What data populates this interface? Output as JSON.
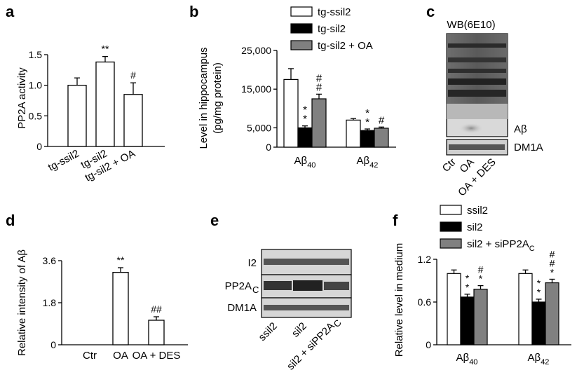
{
  "figure": {
    "panels": [
      "a",
      "b",
      "c",
      "d",
      "e",
      "f"
    ]
  },
  "chart_data": [
    {
      "panel": "a",
      "type": "bar",
      "ylabel": "PP2A activity",
      "ylim": [
        0,
        1.5
      ],
      "yticks": [
        "0",
        "0.5",
        "1.0",
        "1.5"
      ],
      "categories": [
        "tg-ssil2",
        "tg-sil2",
        "tg-sil2 + OA"
      ],
      "values": [
        1.0,
        1.38,
        0.85
      ],
      "errors": [
        0.12,
        0.09,
        0.19
      ],
      "fills": [
        "#ffffff",
        "#ffffff",
        "#ffffff"
      ],
      "annotations": [
        "",
        "**",
        "#"
      ]
    },
    {
      "panel": "b",
      "type": "bar",
      "ylabel_line1": "Level in hippocampus",
      "ylabel_line2": "(pg/mg protein)",
      "ylim": [
        0,
        25000
      ],
      "yticks": [
        "0",
        "5,000",
        "15,000",
        "25,000"
      ],
      "groups": [
        "Aβ40",
        "Aβ42"
      ],
      "group_main": [
        "Aβ",
        "Aβ"
      ],
      "group_sub": [
        "40",
        "42"
      ],
      "series": [
        {
          "name": "tg-ssil2",
          "color": "#ffffff",
          "values": [
            17500,
            7000
          ],
          "errors": [
            2800,
            400
          ]
        },
        {
          "name": "tg-sil2",
          "color": "#000000",
          "values": [
            5000,
            4300
          ],
          "errors": [
            500,
            400
          ]
        },
        {
          "name": "tg-sil2 + OA",
          "color": "#808080",
          "values": [
            12500,
            4900
          ],
          "errors": [
            1200,
            300
          ]
        }
      ],
      "annotations": [
        [
          "",
          "* *",
          "# #"
        ],
        [
          "",
          "* *",
          "#"
        ]
      ]
    },
    {
      "panel": "d",
      "type": "bar",
      "ylabel": "Relative intensity of Aβ",
      "ylim": [
        0,
        3.6
      ],
      "yticks": [
        "0",
        "1.8",
        "3.6"
      ],
      "categories": [
        "Ctr",
        "OA",
        "OA + DES"
      ],
      "values": [
        0,
        3.1,
        1.05
      ],
      "errors": [
        0,
        0.2,
        0.15
      ],
      "annotations": [
        "",
        "**",
        "##"
      ]
    },
    {
      "panel": "f",
      "type": "bar",
      "ylabel": "Relative level in medium",
      "ylim": [
        0,
        1.2
      ],
      "yticks": [
        "0",
        "0.6",
        "1.2"
      ],
      "groups": [
        "Aβ40",
        "Aβ42"
      ],
      "group_main": [
        "Aβ",
        "Aβ"
      ],
      "group_sub": [
        "40",
        "42"
      ],
      "series": [
        {
          "name": "ssil2",
          "color": "#ffffff",
          "values": [
            1.0,
            1.0
          ],
          "errors": [
            0.05,
            0.05
          ]
        },
        {
          "name": "sil2",
          "color": "#000000",
          "values": [
            0.67,
            0.6
          ],
          "errors": [
            0.04,
            0.04
          ]
        },
        {
          "name": "sil2 + siPP2AC",
          "color": "#808080",
          "values": [
            0.78,
            0.87
          ],
          "errors": [
            0.05,
            0.05
          ]
        }
      ],
      "annotations": [
        [
          "",
          "* *",
          "# *"
        ],
        [
          "",
          "* *",
          "# # *"
        ]
      ]
    }
  ],
  "blots": {
    "c": {
      "title": "WB(6E10)",
      "band_label": "Aβ",
      "loading_label": "DM1A",
      "lanes": [
        "Ctr",
        "OA",
        "OA + DES"
      ]
    },
    "e": {
      "rows": [
        "I2",
        "PP2A",
        "DM1A"
      ],
      "row_sub": [
        "",
        "C",
        ""
      ],
      "lanes": [
        "ssil2",
        "sil2",
        "sil2 + siPP2A"
      ],
      "lane_sub": [
        "",
        "",
        "C"
      ]
    }
  }
}
